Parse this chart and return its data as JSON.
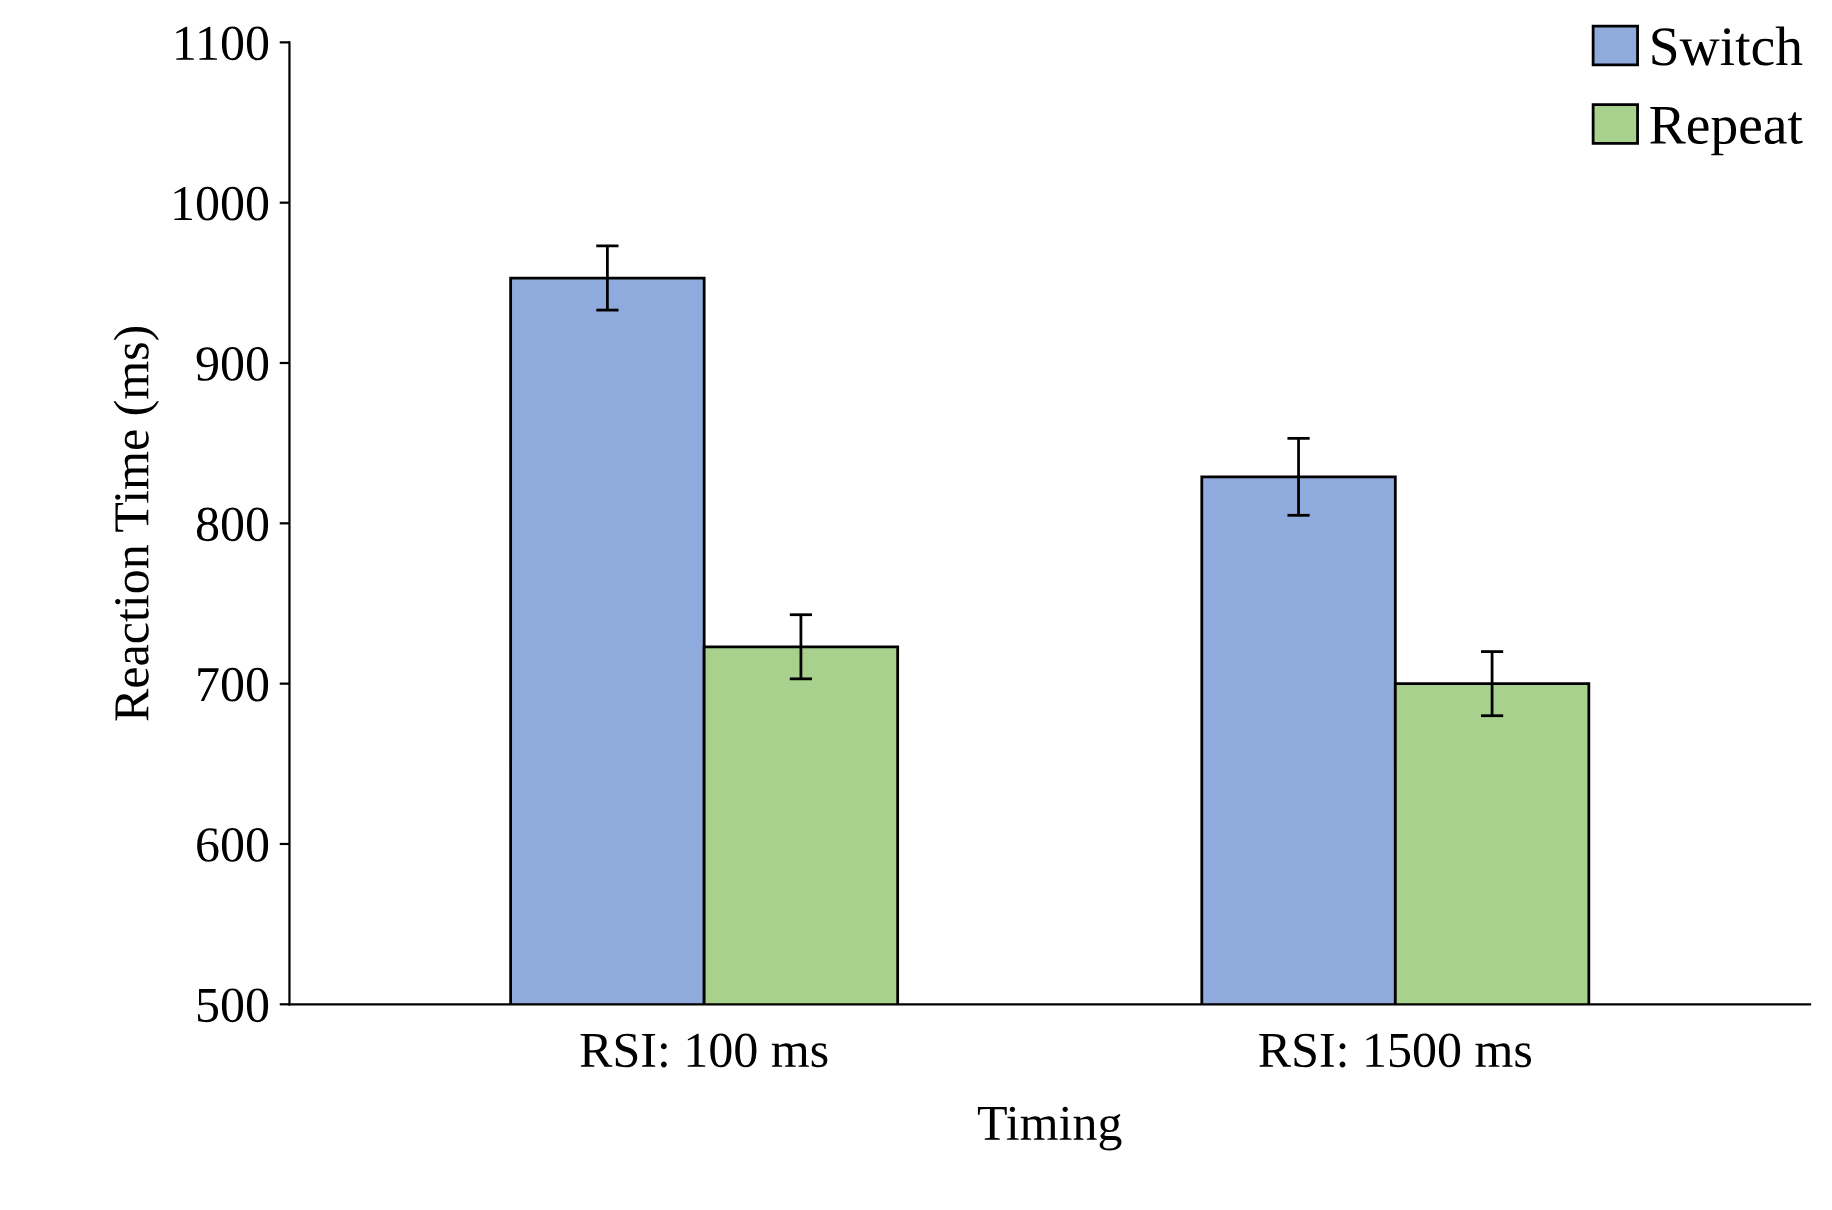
{
  "chart_data": {
    "type": "bar",
    "xlabel": "Timing",
    "ylabel": "Reaction Time (ms)",
    "categories": [
      "RSI: 100 ms",
      "RSI: 1500 ms"
    ],
    "series": [
      {
        "name": "Switch",
        "color": "#8faadc",
        "values": [
          953,
          829
        ],
        "errors": [
          20,
          24
        ]
      },
      {
        "name": "Repeat",
        "color": "#a9d18e",
        "values": [
          723,
          700
        ],
        "errors": [
          20,
          20
        ]
      }
    ],
    "ylim": [
      500,
      1100
    ],
    "yticks": [
      500,
      600,
      700,
      800,
      900,
      1000,
      1100
    ],
    "legend": "top right",
    "grid": false
  }
}
